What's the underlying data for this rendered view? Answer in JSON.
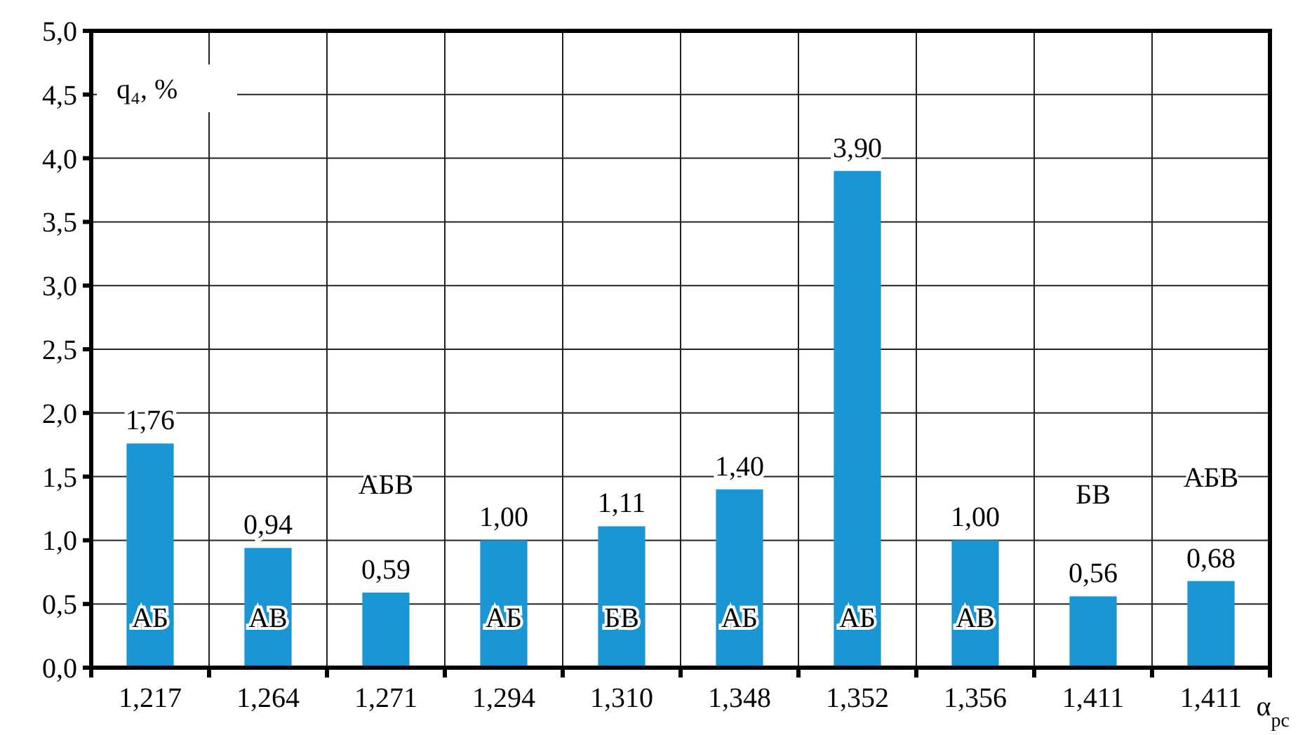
{
  "chart_data": {
    "type": "bar",
    "xlabel": "α$_{рс}$",
    "ylabel": "q₄, %",
    "categories": [
      "1,217",
      "1,264",
      "1,271",
      "1,294",
      "1,310",
      "1,348",
      "1,352",
      "1,356",
      "1,411",
      "1,411"
    ],
    "values": [
      1.76,
      0.94,
      0.59,
      1.0,
      1.11,
      1.4,
      3.9,
      1.0,
      0.56,
      0.68
    ],
    "value_labels": [
      "1,76",
      "0,94",
      "0,59",
      "1,00",
      "1,11",
      "1,40",
      "3,90",
      "1,00",
      "0,56",
      "0,68"
    ],
    "color": "#1a96d4",
    "ylim": [
      0,
      5
    ],
    "yticks": [
      {
        "value": 0,
        "label": "0,0"
      },
      {
        "value": 0.5,
        "label": "0,5"
      },
      {
        "value": 1,
        "label": "1,0"
      },
      {
        "value": 1.5,
        "label": "1,5"
      },
      {
        "value": 2,
        "label": "2,0"
      },
      {
        "value": 2.5,
        "label": "2,5"
      },
      {
        "value": 3,
        "label": "3,0"
      },
      {
        "value": 3.5,
        "label": "3,5"
      },
      {
        "value": 4,
        "label": "4,0"
      },
      {
        "value": 4.5,
        "label": "4,5"
      },
      {
        "value": 5,
        "label": "5,0"
      }
    ],
    "grid": true,
    "annotations": [
      "АБ",
      "АВ",
      "АБВ",
      "АБ",
      "БВ",
      "АБ",
      "АБ",
      "АВ",
      "БВ",
      "АБВ"
    ]
  }
}
